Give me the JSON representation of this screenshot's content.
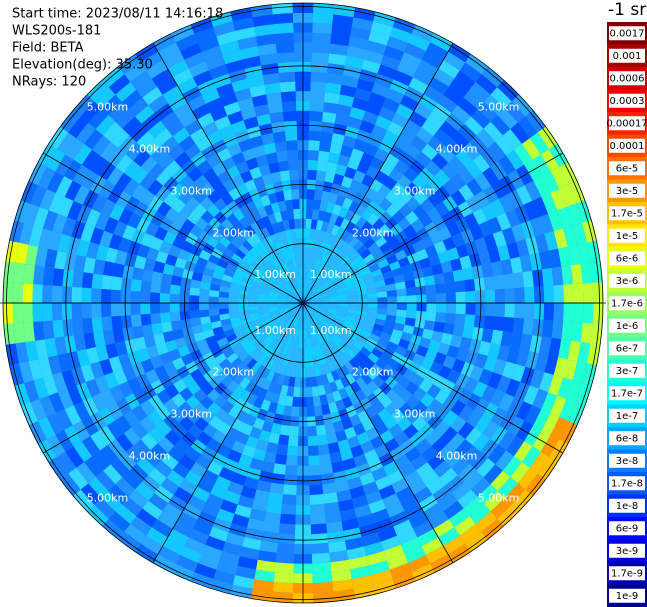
{
  "chart_data": {
    "type": "ppi",
    "info": [
      "Start time: 2023/08/11 14:16:18",
      "WLS200s-181",
      "Field: BETA",
      "Elevation(deg): 35.30",
      "NRays: 120"
    ],
    "range_rings": [
      "1.00km",
      "2.00km",
      "3.00km",
      "4.00km",
      "5.00km"
    ],
    "colorbar": {
      "title": "-1 sr",
      "labels": [
        "0.0017",
        "0.001",
        "0.0006",
        "0.0003",
        "0.00017",
        "0.0001",
        "6e-5",
        "3e-5",
        "1.7e-5",
        "1e-5",
        "6e-6",
        "3e-6",
        "1.7e-6",
        "1e-6",
        "6e-7",
        "3e-7",
        "1.7e-7",
        "1e-7",
        "6e-8",
        "3e-8",
        "1.7e-8",
        "1e-8",
        "6e-9",
        "3e-9",
        "1.7e-9",
        "1e-9"
      ],
      "colors": [
        "#800000",
        "#a80000",
        "#d00000",
        "#f80000",
        "#ff2000",
        "#ff4800",
        "#ff7000",
        "#ff9800",
        "#ffc000",
        "#ffe800",
        "#eaff0d",
        "#c2ff35",
        "#9aff5d",
        "#72ff85",
        "#4affad",
        "#22ffd5",
        "#00f8ff",
        "#00d0ff",
        "#00a8ff",
        "#0080ff",
        "#0058ff",
        "#0030ff",
        "#0008ff",
        "#0000e0",
        "#0000b8",
        "#000090"
      ]
    }
  }
}
